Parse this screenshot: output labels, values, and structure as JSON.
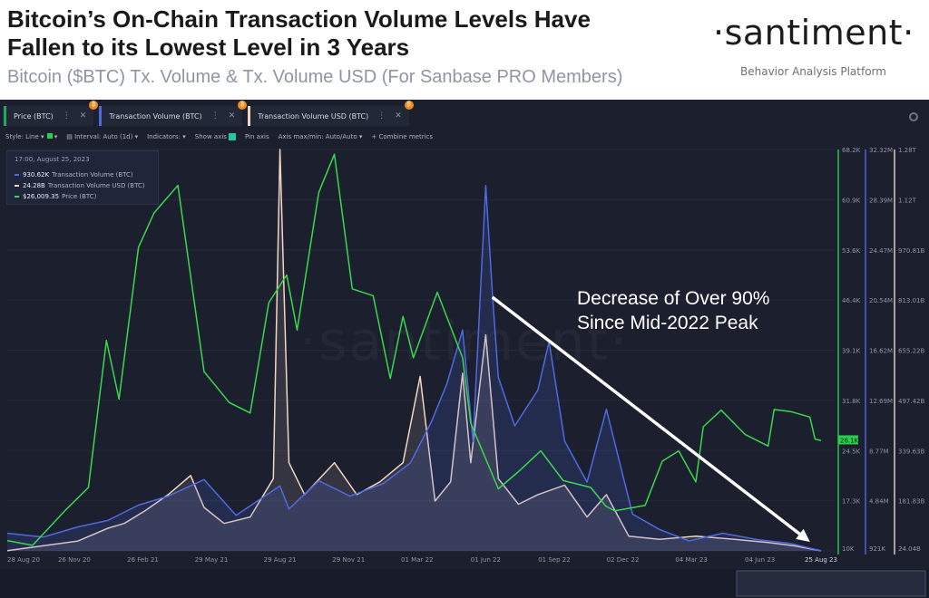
{
  "header": {
    "title_line1": "Bitcoin’s On-Chain Transaction Volume Levels Have",
    "title_line2": "Fallen to its Lowest Level in 3 Years",
    "subtitle": "Bitcoin ($BTC) Tx. Volume & Tx. Volume USD (For Sanbase PRO Members)",
    "logo": "·santiment·",
    "logo_tagline": "Behavior Analysis Platform"
  },
  "tabs": [
    {
      "label": "Price (BTC)",
      "color": "#26a65b"
    },
    {
      "label": "Transaction Volume (BTC)",
      "color": "#4f6ae0"
    },
    {
      "label": "Transaction Volume USD (BTC)",
      "color": "#f2d6c4"
    }
  ],
  "toolbar": {
    "style": "Style: Line",
    "interval": "Interval: Auto (1d)",
    "indicators": "Indicators:",
    "show_axis": "Show axis",
    "pin_axis": "Pin axis",
    "axis_minmax": "Axis max/min: Auto/Auto",
    "combine": "+ Combine metrics"
  },
  "tooltip": {
    "time": "17:00, August 25, 2023",
    "rows": [
      {
        "value": "930.62K",
        "label": "Transaction Volume (BTC)",
        "color": "#4f6ae0"
      },
      {
        "value": "24.28B",
        "label": "Transaction Volume USD (BTC)",
        "color": "#f2d6c4"
      },
      {
        "value": "$26,009.35",
        "label": "Price (BTC)",
        "color": "#3ad84c"
      }
    ]
  },
  "annotation": {
    "line1": "Decrease of Over 90%",
    "line2": "Since Mid-2022 Peak"
  },
  "watermark": "·santiment·",
  "chart_data": {
    "type": "line",
    "x_ticks": [
      "28 Aug 20",
      "26 Nov 20",
      "26 Feb 21",
      "29 May 21",
      "29 Aug 21",
      "29 Nov 21",
      "01 Mar 22",
      "01 Jun 22",
      "01 Sep 22",
      "02 Dec 22",
      "04 Mar 23",
      "04 Jun 23",
      "25 Aug 23"
    ],
    "price_axis": {
      "ticks": [
        "68.2K",
        "60.9K",
        "53.6K",
        "46.4K",
        "39.1K",
        "31.8K",
        "24.5K",
        "17.3K",
        "10K"
      ],
      "current_label": "26.1K",
      "color": "#26d04a"
    },
    "volume_btc_axis": {
      "ticks": [
        "32.32M",
        "28.39M",
        "24.47M",
        "20.54M",
        "16.62M",
        "12.69M",
        "8.77M",
        "4.84M",
        "921K"
      ],
      "color": "#4f6ae0"
    },
    "volume_usd_axis": {
      "ticks": [
        "1.28T",
        "1.12T",
        "970.81B",
        "813.01B",
        "655.22B",
        "497.42B",
        "339.63B",
        "181.83B",
        "24.04B"
      ],
      "color": "#f2d6c4"
    },
    "series": [
      {
        "name": "Price (BTC)",
        "color": "#3ad84c",
        "unit": "USD",
        "x": [
          "2020-08-28",
          "2020-10-01",
          "2020-11-15",
          "2020-12-15",
          "2021-01-08",
          "2021-01-25",
          "2021-02-20",
          "2021-03-13",
          "2021-04-14",
          "2021-05-19",
          "2021-06-22",
          "2021-07-20",
          "2021-08-14",
          "2021-09-07",
          "2021-09-21",
          "2021-10-20",
          "2021-11-10",
          "2021-12-04",
          "2022-01-01",
          "2022-01-24",
          "2022-02-10",
          "2022-02-24",
          "2022-03-28",
          "2022-05-01",
          "2022-05-12",
          "2022-06-18",
          "2022-07-15",
          "2022-08-14",
          "2022-09-13",
          "2022-10-20",
          "2022-11-09",
          "2022-11-21",
          "2023-01-01",
          "2023-01-24",
          "2023-02-15",
          "2023-03-10",
          "2023-03-20",
          "2023-04-13",
          "2023-05-15",
          "2023-06-15",
          "2023-06-23",
          "2023-07-15",
          "2023-08-10",
          "2023-08-17",
          "2023-08-25"
        ],
        "y": [
          11500,
          10800,
          16000,
          19200,
          40500,
          32000,
          54000,
          59000,
          63000,
          36000,
          31500,
          30000,
          46000,
          50000,
          42000,
          62000,
          67500,
          48000,
          47000,
          35000,
          44000,
          38000,
          47500,
          38000,
          28500,
          19000,
          21500,
          24500,
          20200,
          19200,
          16500,
          15800,
          16600,
          23000,
          24500,
          20000,
          28000,
          30400,
          26900,
          25200,
          30500,
          30200,
          29400,
          26200,
          26009
        ]
      },
      {
        "name": "Transaction Volume (BTC)",
        "color": "#4f6ae0",
        "unit": "BTC",
        "x": [
          "2020-08-28",
          "2020-10-15",
          "2020-12-01",
          "2021-01-10",
          "2021-02-20",
          "2021-04-01",
          "2021-05-19",
          "2021-07-01",
          "2021-08-29",
          "2021-09-10",
          "2021-10-20",
          "2021-12-01",
          "2022-01-15",
          "2022-02-20",
          "2022-03-20",
          "2022-04-10",
          "2022-05-01",
          "2022-05-15",
          "2022-06-01",
          "2022-06-10",
          "2022-06-18",
          "2022-07-10",
          "2022-08-10",
          "2022-08-25",
          "2022-09-15",
          "2022-10-15",
          "2022-11-10",
          "2022-12-15",
          "2023-01-20",
          "2023-03-01",
          "2023-04-15",
          "2023-06-01",
          "2023-07-15",
          "2023-08-25"
        ],
        "y": [
          2300000,
          2000000,
          2800000,
          3300000,
          4500000,
          5200000,
          6500000,
          3700000,
          6000000,
          4200000,
          6400000,
          5200000,
          6200000,
          7800000,
          11000000,
          14000000,
          18200000,
          9500000,
          29500000,
          21000000,
          14500000,
          10700000,
          13500000,
          17300000,
          9500000,
          6300000,
          12000000,
          3800000,
          2600000,
          1700000,
          2300000,
          1800000,
          1500000,
          930620
        ]
      },
      {
        "name": "Transaction Volume USD (BTC)",
        "color": "#f2d6c4",
        "unit": "USD",
        "x": [
          "2020-08-28",
          "2020-10-15",
          "2020-12-01",
          "2021-01-10",
          "2021-02-01",
          "2021-03-01",
          "2021-04-01",
          "2021-05-01",
          "2021-05-19",
          "2021-06-15",
          "2021-07-20",
          "2021-08-20",
          "2021-08-29",
          "2021-09-10",
          "2021-10-01",
          "2021-11-10",
          "2021-12-10",
          "2022-01-10",
          "2022-02-10",
          "2022-03-05",
          "2022-03-25",
          "2022-04-15",
          "2022-05-01",
          "2022-05-12",
          "2022-06-01",
          "2022-06-18",
          "2022-07-15",
          "2022-08-10",
          "2022-09-15",
          "2022-10-15",
          "2022-11-10",
          "2022-12-10",
          "2023-01-20",
          "2023-03-10",
          "2023-05-01",
          "2023-06-15",
          "2023-07-20",
          "2023-08-25"
        ],
        "y": [
          25000000000,
          40000000000,
          55000000000,
          95000000000,
          110000000000,
          150000000000,
          200000000000,
          260000000000,
          160000000000,
          110000000000,
          130000000000,
          250000000000,
          1280000000000,
          300000000000,
          200000000000,
          300000000000,
          200000000000,
          240000000000,
          300000000000,
          570000000000,
          180000000000,
          240000000000,
          580000000000,
          300000000000,
          700000000000,
          250000000000,
          170000000000,
          200000000000,
          230000000000,
          130000000000,
          200000000000,
          70000000000,
          60000000000,
          70000000000,
          60000000000,
          50000000000,
          40000000000,
          24280000000
        ]
      }
    ],
    "annotation_arrow": {
      "from_date": "2022-06-10",
      "to_date": "2023-08-20"
    },
    "grid": true
  }
}
